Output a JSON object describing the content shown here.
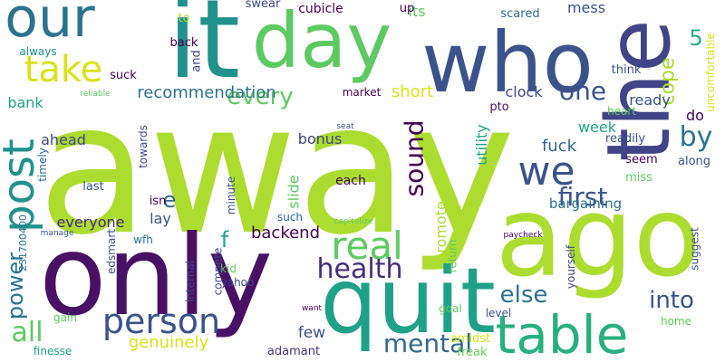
{
  "words": [
    {
      "text": "away",
      "color": "#addc30",
      "size": "xl"
    },
    {
      "text": "only",
      "color": "#471164",
      "size": "xl"
    },
    {
      "text": "ago",
      "color": "#addc30",
      "size": "xl"
    },
    {
      "text": "quit",
      "color": "#1fa187",
      "size": "xl"
    },
    {
      "text": "it",
      "color": "#21918c",
      "size": "xl"
    },
    {
      "text": "who",
      "color": "#3b528b",
      "size": "xl"
    },
    {
      "text": "the",
      "color": "#414487",
      "size": "xl",
      "vertical": true
    },
    {
      "text": "day",
      "color": "#5ec962",
      "size": "l"
    },
    {
      "text": "our",
      "color": "#2c728e",
      "size": "l"
    },
    {
      "text": "take",
      "color": "#d8e219",
      "size": "l"
    },
    {
      "text": "table",
      "color": "#29af7f",
      "size": "l"
    },
    {
      "text": "person",
      "color": "#3b528b",
      "size": "l"
    },
    {
      "text": "post",
      "color": "#21918c",
      "size": "l",
      "vertical": true
    },
    {
      "text": "we",
      "color": "#3b528b",
      "size": "l"
    },
    {
      "text": "real",
      "color": "#5ec962",
      "size": "l"
    },
    {
      "text": "sound",
      "color": "#440154",
      "size": "m",
      "vertical": true
    },
    {
      "text": "health",
      "color": "#472d7b",
      "size": "m"
    },
    {
      "text": "mental",
      "color": "#31688e",
      "size": "m"
    },
    {
      "text": "first",
      "color": "#3b528b",
      "size": "m"
    },
    {
      "text": "into",
      "color": "#3b528b",
      "size": "m"
    },
    {
      "text": "else",
      "color": "#2c728e",
      "size": "m"
    },
    {
      "text": "all",
      "color": "#5ec962",
      "size": "m"
    },
    {
      "text": "every",
      "color": "#5ec962",
      "size": "m"
    },
    {
      "text": "by",
      "color": "#2c728e",
      "size": "m"
    },
    {
      "text": "one",
      "color": "#3b528b",
      "size": "m"
    },
    {
      "text": "power",
      "color": "#2c728e",
      "size": "m",
      "vertical": true
    },
    {
      "text": "cope",
      "color": "#addc30",
      "size": "m",
      "vertical": true
    },
    {
      "text": "5",
      "color": "#27ad81",
      "size": "m"
    },
    {
      "text": "f",
      "color": "#1fa187",
      "size": "m"
    },
    {
      "text": "e",
      "color": "#31688e",
      "size": "m"
    },
    {
      "text": "recommendation",
      "color": "#2c728e",
      "size": "s"
    },
    {
      "text": "genuinely",
      "color": "#d8e219",
      "size": "s"
    },
    {
      "text": "backend",
      "color": "#440154",
      "size": "s"
    },
    {
      "text": "everyone",
      "color": "#482878",
      "size": "s"
    },
    {
      "text": "bargaining",
      "color": "#2c728e",
      "size": "s"
    },
    {
      "text": "fuck",
      "color": "#31688e",
      "size": "s"
    },
    {
      "text": "short",
      "color": "#d8e219",
      "size": "s"
    },
    {
      "text": "promote",
      "color": "#addc30",
      "size": "s",
      "vertical": true
    },
    {
      "text": "few",
      "color": "#3b528b",
      "size": "s"
    },
    {
      "text": "bonus",
      "color": "#414487",
      "size": "s"
    },
    {
      "text": "ahead",
      "color": "#414487",
      "size": "s"
    },
    {
      "text": "week",
      "color": "#20a486",
      "size": "s"
    },
    {
      "text": "mess",
      "color": "#3b528b",
      "size": "s"
    },
    {
      "text": "its",
      "color": "#5ec962",
      "size": "s"
    },
    {
      "text": "cubicle",
      "color": "#440154",
      "size": "s"
    },
    {
      "text": "clock",
      "color": "#3e4989",
      "size": "s"
    },
    {
      "text": "ready",
      "color": "#3b528b",
      "size": "s"
    },
    {
      "text": "lay",
      "color": "#3b528b",
      "size": "s"
    },
    {
      "text": "slide",
      "color": "#5ec962",
      "size": "s",
      "vertical": true
    },
    {
      "text": "bank",
      "color": "#1f9e89",
      "size": "s"
    },
    {
      "text": "utility",
      "color": "#1fa187",
      "size": "s",
      "vertical": true
    },
    {
      "text": "do",
      "color": "#440154",
      "size": "s"
    },
    {
      "text": "each",
      "color": "#440154",
      "size": "s"
    },
    {
      "text": "adamant",
      "color": "#46337f",
      "size": "xs"
    },
    {
      "text": "amidst",
      "color": "#d8e219",
      "size": "xs"
    },
    {
      "text": "freak",
      "color": "#6ccd5a",
      "size": "xs"
    },
    {
      "text": "scared",
      "color": "#31688e",
      "size": "xs"
    },
    {
      "text": "swear",
      "color": "#3e4989",
      "size": "xs"
    },
    {
      "text": "up",
      "color": "#440154",
      "size": "xs"
    },
    {
      "text": "to",
      "color": "#addc30",
      "size": "xs"
    },
    {
      "text": "suck",
      "color": "#440154",
      "size": "xs"
    },
    {
      "text": "back",
      "color": "#440154",
      "size": "xs"
    },
    {
      "text": "and",
      "color": "#3e4989",
      "size": "xs",
      "vertical": true
    },
    {
      "text": "always",
      "color": "#21918c",
      "size": "xs"
    },
    {
      "text": "market",
      "color": "#440154",
      "size": "xs"
    },
    {
      "text": "think",
      "color": "#3b528b",
      "size": "xs"
    },
    {
      "text": "towards",
      "color": "#3e4989",
      "size": "xs",
      "vertical": true
    },
    {
      "text": "pto",
      "color": "#471164",
      "size": "xs"
    },
    {
      "text": "heart",
      "color": "#5ec962",
      "size": "xs"
    },
    {
      "text": "readily",
      "color": "#3b528b",
      "size": "xs"
    },
    {
      "text": "seem",
      "color": "#440154",
      "size": "xs"
    },
    {
      "text": "along",
      "color": "#3b528b",
      "size": "xs"
    },
    {
      "text": "miss",
      "color": "#5ec962",
      "size": "xs"
    },
    {
      "text": "timely",
      "color": "#31688e",
      "size": "xs",
      "vertical": true
    },
    {
      "text": "last",
      "color": "#3b528b",
      "size": "xs"
    },
    {
      "text": "isn",
      "color": "#440154",
      "size": "xs"
    },
    {
      "text": "such",
      "color": "#31688e",
      "size": "xs"
    },
    {
      "text": "minute",
      "color": "#3b528b",
      "size": "xs",
      "vertical": true
    },
    {
      "text": "wfh",
      "color": "#2c728e",
      "size": "xs"
    },
    {
      "text": "kid",
      "color": "#5ec962",
      "size": "xs"
    },
    {
      "text": "edsmart",
      "color": "#3b528b",
      "size": "xs",
      "vertical": true
    },
    {
      "text": "internal",
      "color": "#414487",
      "size": "xs",
      "vertical": true
    },
    {
      "text": "compete",
      "color": "#3e4989",
      "size": "xs",
      "vertical": true
    },
    {
      "text": "yahoo",
      "color": "#3e4989",
      "size": "xs"
    },
    {
      "text": "231700400",
      "color": "#2c728e",
      "size": "xs",
      "vertical": true
    },
    {
      "text": "gain",
      "color": "#5ec962",
      "size": "xs"
    },
    {
      "text": "finesse",
      "color": "#1fa187",
      "size": "xs"
    },
    {
      "text": "return",
      "color": "#5ec962",
      "size": "xs",
      "vertical": true
    },
    {
      "text": "goal",
      "color": "#5ec962",
      "size": "xs"
    },
    {
      "text": "level",
      "color": "#3b528b",
      "size": "xs"
    },
    {
      "text": "yourself",
      "color": "#3e4989",
      "size": "xs",
      "vertical": true
    },
    {
      "text": "suggest",
      "color": "#3b528b",
      "size": "xs",
      "vertical": true
    },
    {
      "text": "home",
      "color": "#5ec962",
      "size": "xs"
    },
    {
      "text": "uncomfortable",
      "color": "#d8e219",
      "size": "xs",
      "vertical": true
    },
    {
      "text": "reliable",
      "color": "#5ec962",
      "size": "xxs"
    },
    {
      "text": "seat",
      "color": "#3b528b",
      "size": "xxs"
    },
    {
      "text": "manage",
      "color": "#3b528b",
      "size": "xxs"
    },
    {
      "text": "capitalize",
      "color": "#5ec962",
      "size": "xxs"
    },
    {
      "text": "paycheck",
      "color": "#440154",
      "size": "xxs"
    },
    {
      "text": "want",
      "color": "#440154",
      "size": "xxs"
    }
  ]
}
